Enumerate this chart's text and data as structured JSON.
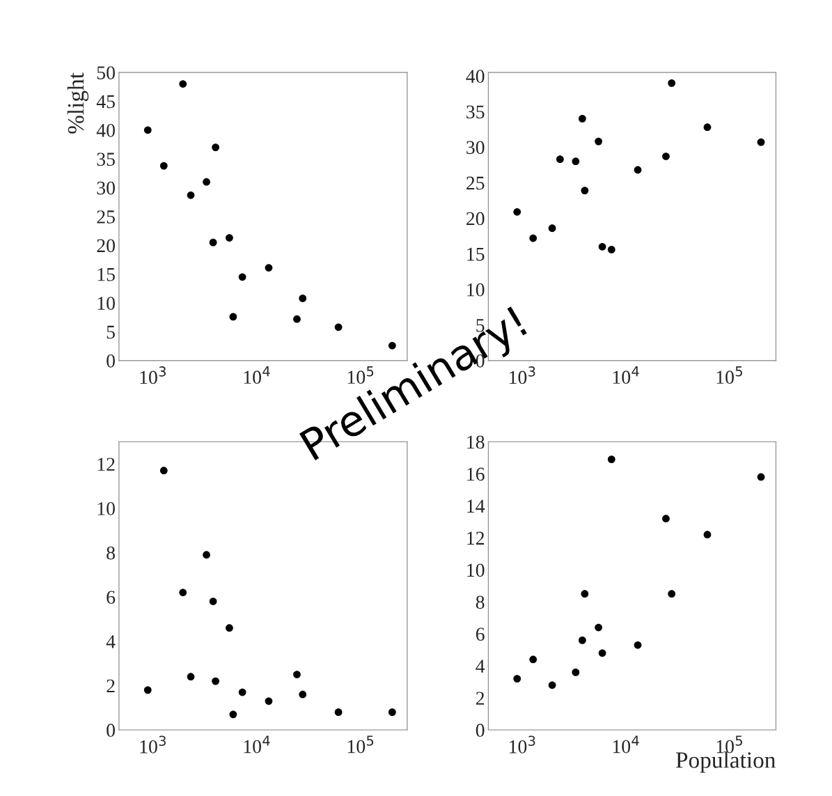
{
  "chart_data": [
    {
      "type": "scatter",
      "ylabel": "%light",
      "log": "x",
      "marker": "circle",
      "grid": false,
      "legend": false,
      "annotations": [
        "Preliminary!"
      ],
      "xlim": [
        470,
        280000
      ],
      "xticks": [
        {
          "value": 1000,
          "label": "10$^{3}$"
        },
        {
          "value": 10000,
          "label": "10$^{4}$"
        },
        {
          "value": 100000,
          "label": "10$^{5}$"
        }
      ],
      "ylim": [
        0,
        50
      ],
      "yticks": [
        0,
        5,
        10,
        15,
        20,
        25,
        30,
        35,
        40,
        45,
        50
      ],
      "series": [
        {
          "color": "#000000",
          "x": [
            890,
            1270,
            1940,
            2310,
            3270,
            3790,
            4000,
            5430,
            5910,
            7250,
            13000,
            24300,
            27600,
            61000,
            201000
          ],
          "values": [
            40,
            33.8,
            48,
            28.7,
            31,
            20.5,
            37,
            21.3,
            7.6,
            14.5,
            16.1,
            7.2,
            10.8,
            5.8,
            2.6
          ]
        }
      ]
    },
    {
      "type": "scatter",
      "log": "x",
      "marker": "circle",
      "grid": false,
      "legend": false,
      "xlim": [
        470,
        280000
      ],
      "xticks": [
        {
          "value": 1000,
          "label": "10$^{3}$"
        },
        {
          "value": 10000,
          "label": "10$^{4}$"
        },
        {
          "value": 100000,
          "label": "10$^{5}$"
        }
      ],
      "ylim": [
        0,
        40.5
      ],
      "yticks": [
        0,
        5,
        10,
        15,
        20,
        25,
        30,
        35,
        40
      ],
      "series": [
        {
          "color": "#000000",
          "x": [
            890,
            1270,
            1940,
            2310,
            3270,
            3790,
            4000,
            5430,
            5910,
            7250,
            13000,
            24300,
            27600,
            61000,
            201000
          ],
          "values": [
            20.9,
            17.2,
            18.6,
            28.3,
            28,
            34,
            23.9,
            30.8,
            16,
            15.6,
            26.8,
            28.7,
            39,
            32.8,
            30.7
          ]
        }
      ]
    },
    {
      "type": "scatter",
      "log": "x",
      "marker": "circle",
      "grid": false,
      "legend": false,
      "xlim": [
        470,
        280000
      ],
      "xticks": [
        {
          "value": 1000,
          "label": "10$^{3}$"
        },
        {
          "value": 10000,
          "label": "10$^{4}$"
        },
        {
          "value": 100000,
          "label": "10$^{5}$"
        }
      ],
      "ylim": [
        0,
        13
      ],
      "yticks": [
        0,
        2,
        4,
        6,
        8,
        10,
        12
      ],
      "series": [
        {
          "color": "#000000",
          "x": [
            890,
            1270,
            1940,
            2310,
            3270,
            3790,
            4000,
            5430,
            5910,
            7250,
            13000,
            24300,
            27600,
            61000,
            201000
          ],
          "values": [
            1.8,
            11.7,
            6.2,
            2.4,
            7.9,
            5.8,
            2.2,
            4.6,
            0.7,
            1.7,
            1.3,
            2.5,
            1.6,
            0.8,
            0.8
          ]
        }
      ]
    },
    {
      "type": "scatter",
      "xlabel": "Population",
      "log": "x",
      "marker": "circle",
      "grid": false,
      "legend": false,
      "xlim": [
        470,
        280000
      ],
      "xticks": [
        {
          "value": 1000,
          "label": "10$^{3}$"
        },
        {
          "value": 10000,
          "label": "10$^{4}$"
        },
        {
          "value": 100000,
          "label": "10$^{5}$"
        }
      ],
      "ylim": [
        0,
        18
      ],
      "yticks": [
        0,
        2,
        4,
        6,
        8,
        10,
        12,
        14,
        16,
        18
      ],
      "series": [
        {
          "color": "#000000",
          "x": [
            890,
            1270,
            1940,
            3270,
            3790,
            4000,
            5430,
            5910,
            7250,
            13000,
            24300,
            27600,
            61000,
            201000
          ],
          "values": [
            3.2,
            4.4,
            2.8,
            3.6,
            5.6,
            8.5,
            6.4,
            4.8,
            16.9,
            5.3,
            13.2,
            8.5,
            12.2,
            15.8
          ]
        }
      ]
    }
  ]
}
